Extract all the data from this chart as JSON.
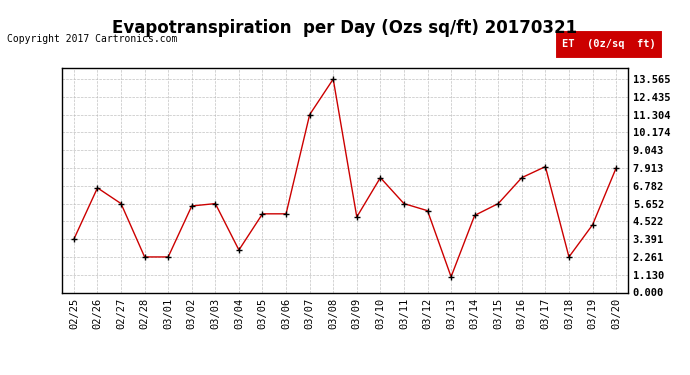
{
  "title": "Evapotranspiration  per Day (Ozs sq/ft) 20170321",
  "copyright_text": "Copyright 2017 Cartronics.com",
  "legend_label": "ET  (0z/sq  ft)",
  "legend_bg": "#cc0000",
  "legend_text_color": "#ffffff",
  "x_labels": [
    "02/25",
    "02/26",
    "02/27",
    "02/28",
    "03/01",
    "03/02",
    "03/03",
    "03/04",
    "03/05",
    "03/06",
    "03/07",
    "03/08",
    "03/09",
    "03/10",
    "03/11",
    "03/12",
    "03/13",
    "03/14",
    "03/15",
    "03/16",
    "03/17",
    "03/18",
    "03/19",
    "03/20"
  ],
  "y_values": [
    3.39,
    6.65,
    5.65,
    2.26,
    2.26,
    5.5,
    5.65,
    2.7,
    5.0,
    5.0,
    11.3,
    13.565,
    4.8,
    7.3,
    5.65,
    5.2,
    1.0,
    4.9,
    5.65,
    7.3,
    8.0,
    2.26,
    4.3,
    7.91
  ],
  "y_ticks": [
    0.0,
    1.13,
    2.261,
    3.391,
    4.522,
    5.652,
    6.782,
    7.913,
    9.043,
    10.174,
    11.304,
    12.435,
    13.565
  ],
  "ylim": [
    0.0,
    14.3
  ],
  "line_color": "#cc0000",
  "marker_color": "#000000",
  "bg_color": "#ffffff",
  "grid_color": "#bbbbbb",
  "title_fontsize": 12,
  "tick_fontsize": 7.5,
  "copyright_fontsize": 7
}
